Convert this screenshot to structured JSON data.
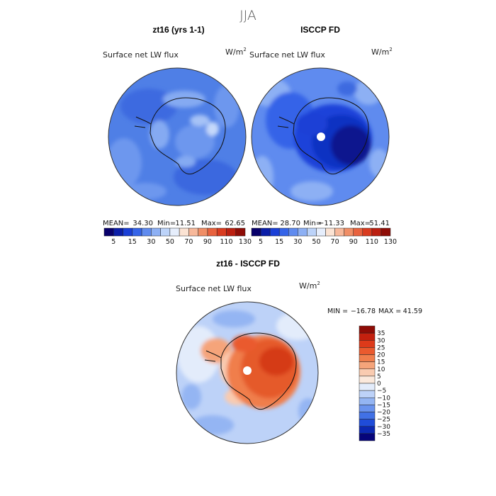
{
  "figure_title": "JJA",
  "chart_data": [
    {
      "type": "map",
      "panel_title": "zt16 (yrs 1-1)",
      "variable": "Surface net LW flux",
      "units_base": "W/m",
      "units_exp": "2",
      "stats": {
        "mean_label": "MEAN=",
        "mean": "34.30",
        "min_label": "Min=",
        "min": "11.51",
        "max_label": "Max=",
        "max": "62.65"
      },
      "colorbar_ticks": [
        "5",
        "15",
        "30",
        "50",
        "70",
        "90",
        "110",
        "130"
      ],
      "colorbar_colors": [
        "#08006b",
        "#0b1ea8",
        "#1a3fd6",
        "#3564e8",
        "#5f8bef",
        "#8db0f4",
        "#bcd3f9",
        "#e6eefc",
        "#fbe3d3",
        "#f7b89a",
        "#f08e66",
        "#e8623e",
        "#d93b1f",
        "#bb1f10",
        "#8e0c06"
      ]
    },
    {
      "type": "map",
      "panel_title": "ISCCP FD",
      "variable": "Surface net LW flux",
      "units_base": "W/m",
      "units_exp": "2",
      "stats": {
        "mean_label": "MEAN=",
        "mean": "28.70",
        "min_label": "Min=",
        "min": "−11.33",
        "max_label": "Max=",
        "max": "51.41"
      },
      "colorbar_ticks": [
        "5",
        "15",
        "30",
        "50",
        "70",
        "90",
        "110",
        "130"
      ],
      "colorbar_colors": [
        "#08006b",
        "#0b1ea8",
        "#1a3fd6",
        "#3564e8",
        "#5f8bef",
        "#8db0f4",
        "#bcd3f9",
        "#e6eefc",
        "#fbe3d3",
        "#f7b89a",
        "#f08e66",
        "#e8623e",
        "#d93b1f",
        "#bb1f10",
        "#8e0c06"
      ]
    },
    {
      "type": "map",
      "panel_title": "zt16 - ISCCP FD",
      "variable": "Surface net LW flux",
      "units_base": "W/m",
      "units_exp": "2",
      "stats": {
        "min_label": "MIN =",
        "min": "−16.78",
        "max_label": "MAX =",
        "max": "41.59"
      },
      "colorbar_ticks": [
        "35",
        "30",
        "25",
        "20",
        "15",
        "10",
        "5",
        "0",
        "−5",
        "−10",
        "−15",
        "−20",
        "−25",
        "−30",
        "−35"
      ],
      "colorbar_colors": [
        "#8e0c06",
        "#c3200e",
        "#dd3a1a",
        "#ea5a2e",
        "#f07e4c",
        "#f5a47a",
        "#f9cbb0",
        "#fbe9dc",
        "#e3ecfb",
        "#bdd2f8",
        "#94b5f3",
        "#6a93ee",
        "#4171e6",
        "#1f4cd9",
        "#0c28b2",
        "#06047a"
      ]
    }
  ],
  "colors": {
    "outline": "#333333",
    "coast": "#111111",
    "pole_hole": "#ffffff"
  }
}
